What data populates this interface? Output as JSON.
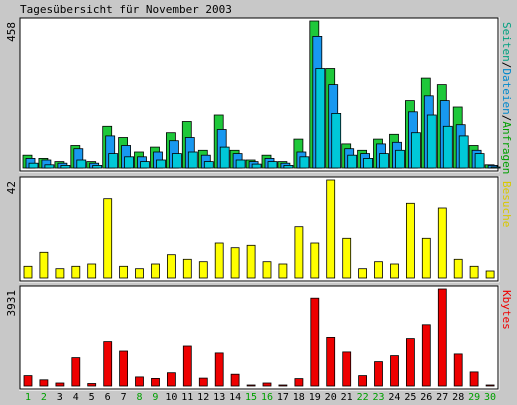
{
  "chart_data": {
    "type": "bar",
    "title": "Tagesübersicht für November 2003",
    "categories": [
      "1",
      "2",
      "3",
      "4",
      "5",
      "6",
      "7",
      "8",
      "9",
      "10",
      "11",
      "12",
      "13",
      "14",
      "15",
      "16",
      "17",
      "18",
      "19",
      "20",
      "21",
      "22",
      "23",
      "24",
      "25",
      "26",
      "27",
      "28",
      "29",
      "30"
    ],
    "weekend_days": [
      "1",
      "2",
      "8",
      "9",
      "15",
      "16",
      "22",
      "23",
      "29",
      "30"
    ],
    "panels": [
      {
        "axis_max_label": "458",
        "ylim": [
          0,
          458
        ],
        "label_parts": [
          {
            "text": "Seiten",
            "color": "#00a080"
          },
          {
            "text": "/",
            "color": "#000000"
          },
          {
            "text": "Dateien",
            "color": "#0088cc"
          },
          {
            "text": "/",
            "color": "#000000"
          },
          {
            "text": "Anfragen",
            "color": "#00a000"
          }
        ],
        "series": [
          {
            "name": "Anfragen",
            "color": "#1ec83a",
            "values": [
              40,
              30,
              20,
              70,
              20,
              130,
              95,
              50,
              65,
              110,
              145,
              55,
              165,
              55,
              25,
              40,
              20,
              90,
              458,
              310,
              75,
              55,
              90,
              105,
              210,
              280,
              260,
              190,
              70,
              10
            ]
          },
          {
            "name": "Dateien",
            "color": "#1898f0",
            "values": [
              30,
              25,
              15,
              60,
              15,
              100,
              70,
              35,
              50,
              85,
              95,
              40,
              120,
              45,
              20,
              30,
              15,
              50,
              410,
              260,
              60,
              45,
              75,
              80,
              175,
              225,
              210,
              135,
              55,
              8
            ]
          },
          {
            "name": "Seiten",
            "color": "#00c8d8",
            "values": [
              15,
              10,
              8,
              25,
              8,
              45,
              35,
              20,
              25,
              45,
              50,
              20,
              65,
              25,
              12,
              20,
              8,
              35,
              310,
              170,
              40,
              30,
              45,
              55,
              110,
              165,
              130,
              100,
              45,
              3
            ]
          }
        ]
      },
      {
        "axis_max_label": "42",
        "ylim": [
          0,
          42
        ],
        "label_parts": [
          {
            "text": "Besuche",
            "color": "#d8c800"
          }
        ],
        "series": [
          {
            "name": "Besuche",
            "color": "#ffff00",
            "values": [
              5,
              11,
              4,
              5,
              6,
              34,
              5,
              4,
              6,
              10,
              8,
              7,
              15,
              13,
              14,
              7,
              6,
              22,
              15,
              42,
              17,
              4,
              7,
              6,
              32,
              17,
              30,
              8,
              5,
              3
            ]
          }
        ]
      },
      {
        "axis_max_label": "3931",
        "ylim": [
          0,
          3931
        ],
        "label_parts": [
          {
            "text": "Kbytes",
            "color": "#ee0000"
          }
        ],
        "series": [
          {
            "name": "Kbytes",
            "color": "#ee0000",
            "values": [
              420,
              250,
              120,
              1150,
              100,
              1800,
              1420,
              370,
              310,
              540,
              1620,
              320,
              1340,
              480,
              40,
              120,
              40,
              300,
              3560,
              1970,
              1380,
              420,
              990,
              1230,
              1920,
              2480,
              3931,
              1300,
              570,
              30
            ]
          }
        ]
      }
    ]
  },
  "colors": {
    "frame_bg": "#c8c8c8",
    "panel_bg": "#ffffff",
    "title_text": "#000000",
    "day_weekday": "#000000",
    "day_weekend": "#00a000"
  }
}
